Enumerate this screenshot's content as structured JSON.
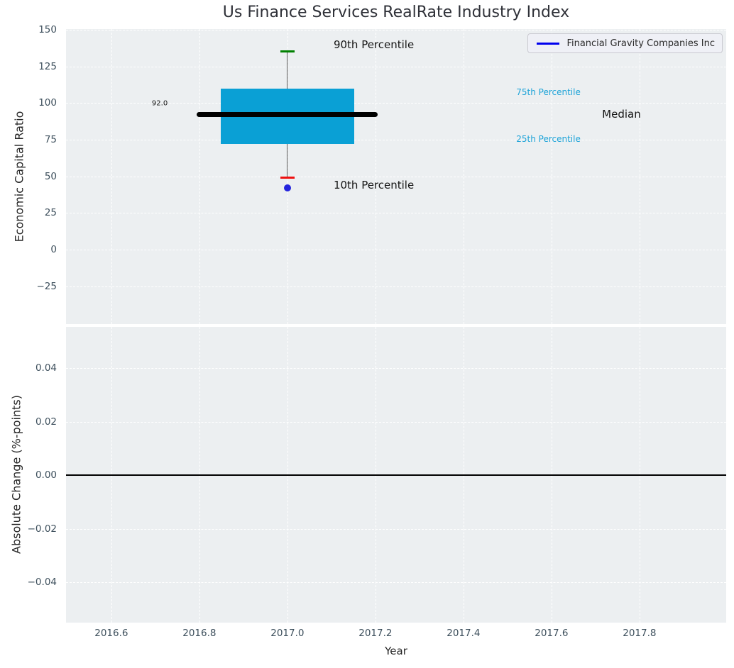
{
  "title": "Us Finance Services RealRate Industry Index",
  "legend": {
    "label": "Financial Gravity Companies Inc"
  },
  "x_axis": {
    "label": "Year",
    "ticks": [
      {
        "v": 2016.6,
        "label": "2016.6"
      },
      {
        "v": 2016.8,
        "label": "2016.8"
      },
      {
        "v": 2017.0,
        "label": "2017.0"
      },
      {
        "v": 2017.2,
        "label": "2017.2"
      },
      {
        "v": 2017.4,
        "label": "2017.4"
      },
      {
        "v": 2017.6,
        "label": "2017.6"
      },
      {
        "v": 2017.8,
        "label": "2017.8"
      }
    ]
  },
  "colors": {
    "plot_bg": "#eceff1",
    "grid": "#ffffff",
    "box_fill": "#0aa0d5",
    "median_line": "#000000",
    "whisker": "#555555",
    "cap_90th": "#008000",
    "cap_10th": "#ee1111",
    "company_point": "#2424dd",
    "legend_line": "#0000ee",
    "cyan_text": "#1da3d8",
    "dark_text": "#141414",
    "tick_text": "#3d4f5c",
    "zero_line": "#000000"
  },
  "chart_data": [
    {
      "name": "economic_capital_ratio_panel",
      "type": "box",
      "ylabel": "Economic Capital Ratio",
      "xlim": [
        2016.497,
        2017.997
      ],
      "ylim": [
        -50.7,
        150.4
      ],
      "grid": true,
      "yticks": [
        {
          "v": 150,
          "label": "150"
        },
        {
          "v": 125,
          "label": "125"
        },
        {
          "v": 100,
          "label": "100"
        },
        {
          "v": 75,
          "label": "75"
        },
        {
          "v": 50,
          "label": "50"
        },
        {
          "v": 25,
          "label": "25"
        },
        {
          "v": 0,
          "label": "0"
        },
        {
          "v": -25,
          "label": "−25"
        }
      ],
      "series": [
        {
          "name": "industry_percentiles",
          "type": "boxplot",
          "x": 2017.0,
          "p10": 49,
          "p25": 72,
          "median": 92.0,
          "p75": 110,
          "p90": 135,
          "box_half_width": 0.1516,
          "median_half_width": 0.2057,
          "cap_half_width": 0.016
        },
        {
          "name": "Financial Gravity Companies Inc",
          "type": "point",
          "x": 2017.0,
          "y": 42
        }
      ],
      "annotations": [
        {
          "text": "90th Percentile",
          "x": 2017.105,
          "y": 140.0,
          "color": "#141414",
          "size": 15,
          "anchor": "left"
        },
        {
          "text": "10th Percentile",
          "x": 2017.105,
          "y": 44.0,
          "color": "#141414",
          "size": 15,
          "anchor": "left"
        },
        {
          "text": "92.0",
          "x": 2016.71,
          "y": 99.5,
          "color": "#141414",
          "size": 10,
          "anchor": "center"
        },
        {
          "text": "75th Percentile",
          "x": 2017.52,
          "y": 107.5,
          "color": "#1da3d8",
          "size": 12,
          "anchor": "left"
        },
        {
          "text": "Median",
          "x": 2017.715,
          "y": 92.3,
          "color": "#141414",
          "size": 15,
          "anchor": "left"
        },
        {
          "text": "25th Percentile",
          "x": 2017.52,
          "y": 75.5,
          "color": "#1da3d8",
          "size": 12,
          "anchor": "left"
        }
      ]
    },
    {
      "name": "absolute_change_panel",
      "type": "line",
      "ylabel": "Absolute Change (%-points)",
      "xlim": [
        2016.497,
        2017.997
      ],
      "ylim": [
        -0.0551,
        0.0554
      ],
      "grid": true,
      "zero_line": 0.0,
      "yticks": [
        {
          "v": 0.04,
          "label": "0.04"
        },
        {
          "v": 0.02,
          "label": "0.02"
        },
        {
          "v": 0.0,
          "label": "0.00"
        },
        {
          "v": -0.02,
          "label": "−0.02"
        },
        {
          "v": -0.04,
          "label": "−0.04"
        }
      ],
      "annotations": []
    }
  ]
}
